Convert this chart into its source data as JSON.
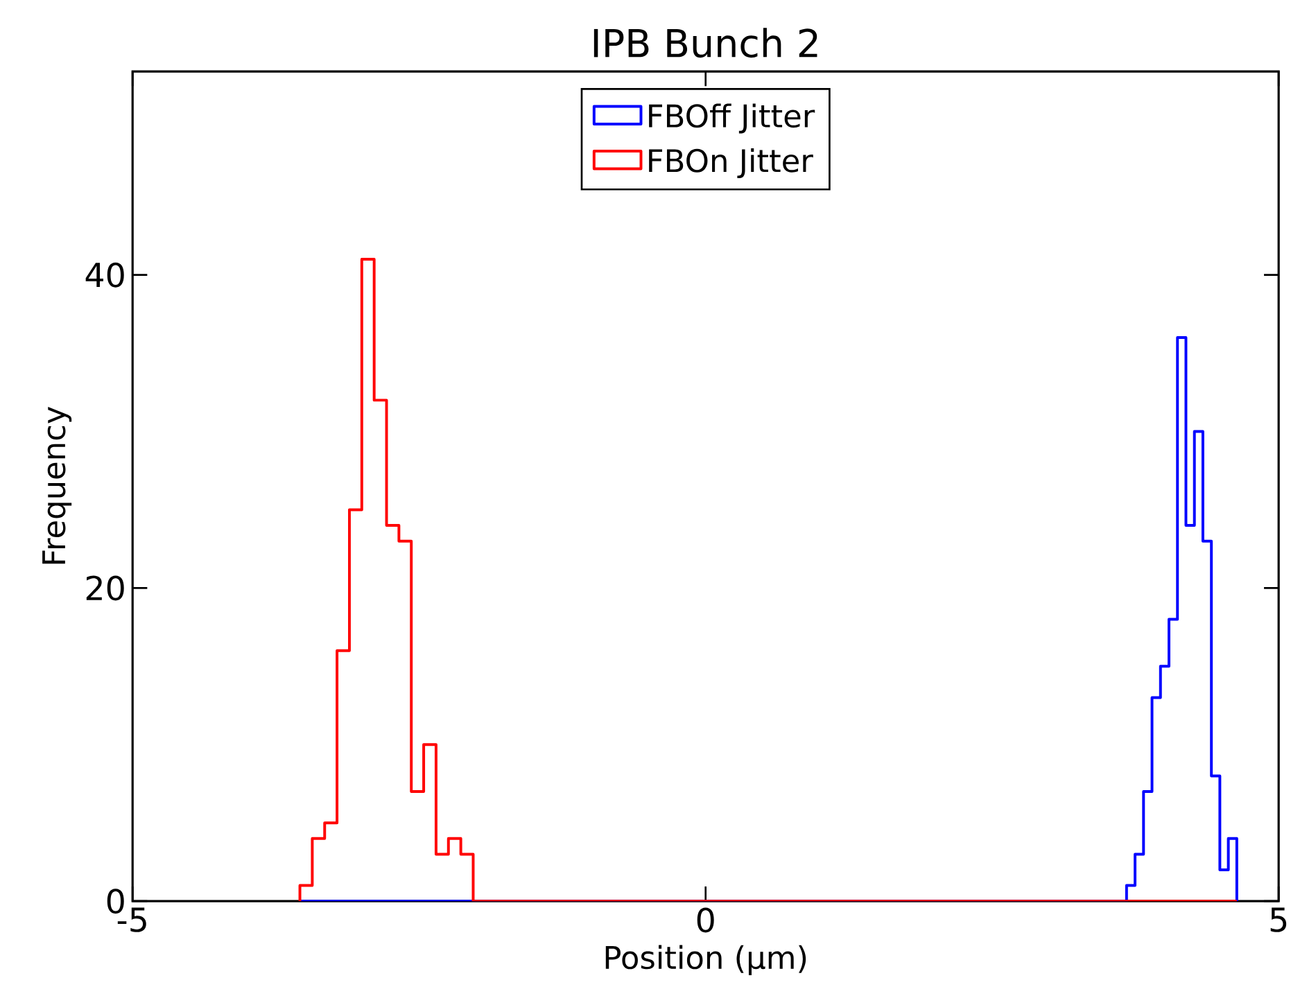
{
  "chart_data": {
    "type": "histogram",
    "title": "IPB Bunch 2",
    "xlabel": "Position (μm)",
    "ylabel": "Frequency",
    "xlim": [
      -5,
      5
    ],
    "ylim": [
      0,
      53
    ],
    "xticks": [
      -5,
      0,
      5
    ],
    "yticks": [
      0,
      20,
      40
    ],
    "legend": "top",
    "bins": [
      -3.54,
      -3.432,
      -3.324,
      -3.216,
      -3.108,
      -3.0,
      -2.892,
      -2.784,
      -2.676,
      -2.568,
      -2.46,
      -2.352,
      -2.244,
      -2.136,
      -2.028,
      3.673,
      3.747,
      3.821,
      3.895,
      3.969,
      4.043,
      4.117,
      4.191,
      4.265,
      4.339,
      4.413,
      4.487,
      4.561,
      4.635
    ],
    "series": [
      {
        "name": "FBOff Jitter",
        "color": "#0000ff",
        "values": [
          0,
          0,
          0,
          0,
          0,
          0,
          0,
          0,
          0,
          0,
          0,
          0,
          0,
          0,
          0,
          1,
          3,
          7,
          13,
          15,
          18,
          36,
          24,
          30,
          23,
          8,
          2,
          4
        ]
      },
      {
        "name": "FBOn Jitter",
        "color": "#ff0000",
        "values": [
          1,
          4,
          5,
          16,
          25,
          41,
          32,
          24,
          23,
          7,
          10,
          3,
          4,
          3,
          0,
          0,
          0,
          0,
          0,
          0,
          0,
          0,
          0,
          0,
          0,
          0,
          0,
          0
        ]
      }
    ]
  }
}
